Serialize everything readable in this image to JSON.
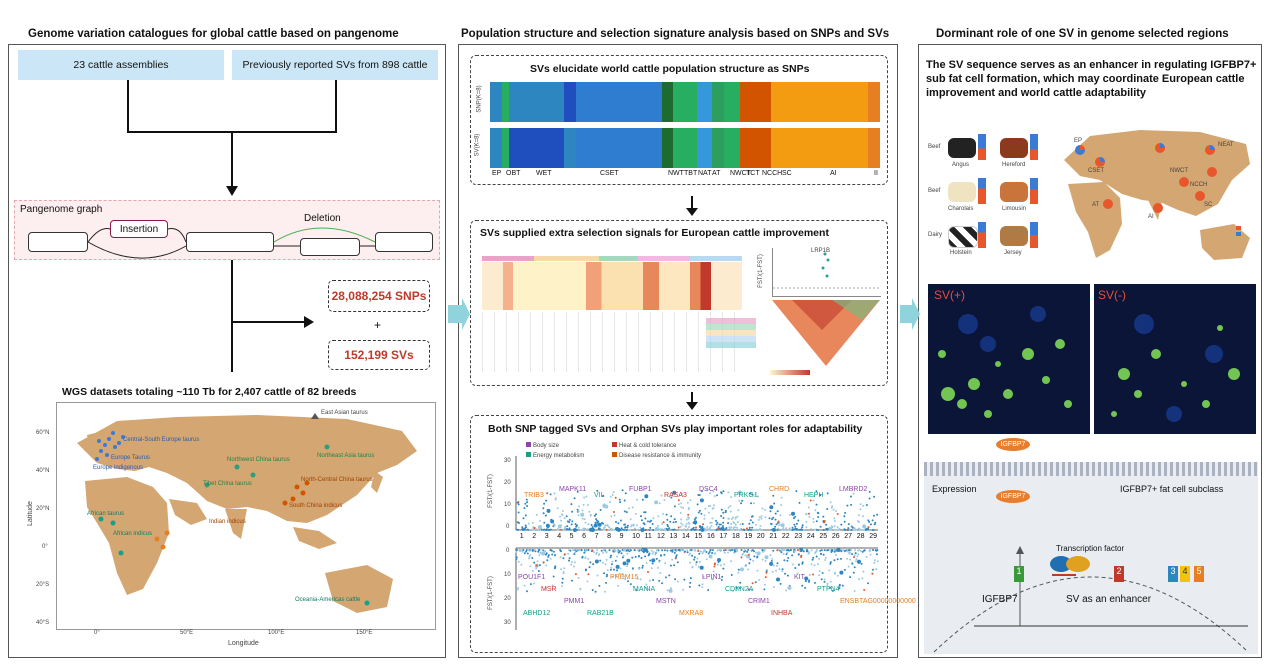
{
  "left": {
    "title": "Genome variation catalogues for global cattle based on pangenome",
    "box_assemblies": "23 cattle assemblies",
    "box_reported": "Previously reported SVs from 898 cattle",
    "graph_title": "Pangenome graph",
    "insertion": "Insertion",
    "deletion": "Deletion",
    "snps": "28,088,254 SNPs",
    "plus": "+",
    "svs": "152,199 SVs",
    "map_title": "WGS datasets totaling ~110 Tb for 2,407 cattle of 82 breeds",
    "map_legend": "East Asian taurus",
    "map_labels": [
      "Central-South Europe taurus",
      "Europe Taurus",
      "Europe indigenous",
      "Northeast Asia taurus",
      "Northwest China taurus",
      "Tibet China taurus",
      "North-Central China taurus",
      "South China indicus",
      "Indian indicus",
      "African taurus",
      "African indicus",
      "Oceania-Americas cattle"
    ],
    "lat_ticks": [
      "60°N",
      "40°N",
      "20°N",
      "0°",
      "20°S",
      "40°S"
    ],
    "lon_ticks": [
      "0°",
      "50°E",
      "100°E",
      "150°E"
    ],
    "xlabel": "Longitude",
    "ylabel": "Latitude"
  },
  "middle": {
    "title": "Population structure and selection signature analysis based on SNPs and SVs",
    "p1_title": "SVs elucidate world cattle population structure as SNPs",
    "p1_row1": "SNP(K=8)",
    "p1_row2": "SV(K=8)",
    "p1_pops": [
      "EP",
      "OBT",
      "WET",
      "CSET",
      "NWT",
      "TBT",
      "NAT",
      "AT",
      "NWCT",
      "TCT",
      "NCCH",
      "SC",
      "AI",
      "II"
    ],
    "p2_title": "SVs supplied extra selection signals for European cattle improvement",
    "p2_ylabel": "FST/(1-FST)",
    "p2_gene": "LRP1B",
    "p3_title": "Both SNP tagged SVs and Orphan SVs play important roles for adaptability",
    "p3_ylabel": "FST/(1-FST)",
    "p3_legend": [
      "Body size",
      "Heat & cold tolerance",
      "Energy metabolism",
      "Disease resistance & immunity"
    ],
    "p3_top_genes": [
      "TRIB3",
      "MAPK11",
      "VIL",
      "FUBP1",
      "RASA3",
      "DSC4",
      "PRKG1",
      "CHRD",
      "HEPH",
      "LMBRD2"
    ],
    "p3_bottom_genes": [
      "POU1F1",
      "MSR",
      "PMM1",
      "RAB21B",
      "PRDM15",
      "MANIA",
      "MSTN",
      "MXRA8",
      "LPIN1",
      "CDKN2A",
      "CRIM1",
      "INHBA",
      "KIT",
      "PTPN4",
      "ENSBTAG00000000000",
      "ABHD12"
    ],
    "chromosomes": [
      "1",
      "2",
      "3",
      "4",
      "5",
      "6",
      "7",
      "8",
      "9",
      "10",
      "11",
      "12",
      "13",
      "14",
      "15",
      "16",
      "17",
      "18",
      "19",
      "20",
      "21",
      "22",
      "23",
      "24",
      "25",
      "26",
      "27",
      "28",
      "29"
    ],
    "top_yticks": [
      "0",
      "10",
      "20",
      "30"
    ],
    "bottom_yticks": [
      "0",
      "10",
      "20",
      "30"
    ]
  },
  "right": {
    "title": "Dorminant role of one SV in genome selected regions",
    "statement": "The SV sequence serves as an enhancer in regulating IGFBP7+ sub fat cell formation, which may coordinate European cattle improvement and world cattle adaptability",
    "breeds": [
      "Angus",
      "Hereford",
      "Charolais",
      "Limousin",
      "Holstein",
      "Jersey"
    ],
    "row_labels": [
      "Beef",
      "Beef",
      "Dairy"
    ],
    "map_regions": [
      "EP",
      "CSET",
      "NWCT",
      "NCCH",
      "AT",
      "AI",
      "SC",
      "NEAT"
    ],
    "sv_plus": "SV(+)",
    "sv_minus": "SV(-)",
    "protein": "IGFBP7",
    "protein2": "IGFBP7",
    "expression": "Expression",
    "fat_cell": "IGFBP7+ fat cell subclass",
    "tf": "Transcription factor",
    "gene": "IGFBP7",
    "enhancer": "SV as an enhancer",
    "exons": [
      "1",
      "2",
      "3",
      "4",
      "5"
    ]
  },
  "colors": {
    "red_text": "#c0392b",
    "blue_box": "#cbe6f6",
    "map_land": "#d4a671",
    "sea": "#ffffff",
    "arrow_teal": "#8fd3dc",
    "pink_bg": "#fdeef0"
  }
}
